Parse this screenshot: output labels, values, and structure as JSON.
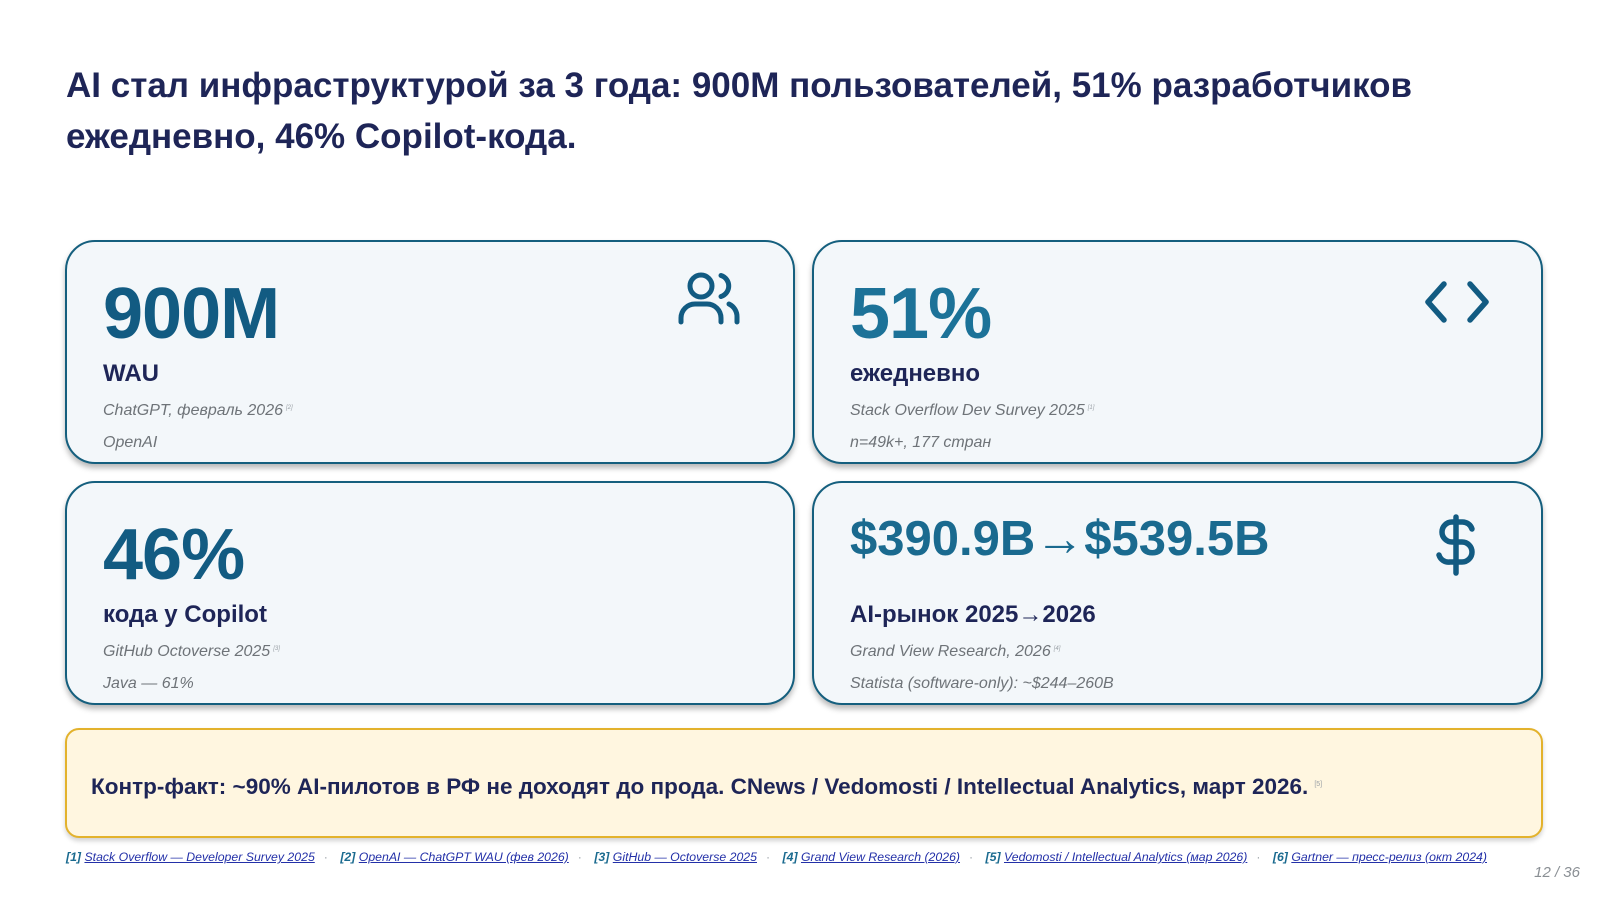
{
  "title": "AI стал инфраструктурой за 3 года: 900M пользователей, 51% разработчиков ежедневно, 46% Copilot-кода.",
  "cards": [
    {
      "value": "900M",
      "label": "WAU",
      "source": "ChatGPT, февраль 2026",
      "ref": "[2]",
      "note": "OpenAI",
      "icon": "users-icon"
    },
    {
      "value": "51%",
      "label": "ежедневно",
      "source": "Stack Overflow Dev Survey 2025",
      "ref": "[1]",
      "note": "n=49k+, 177 стран",
      "icon": "code-icon"
    },
    {
      "value": "46%",
      "label": "кода у Copilot",
      "source": "GitHub Octoverse 2025",
      "ref": "[3]",
      "note": "Java — 61%"
    },
    {
      "value": "$390.9B→$539.5B",
      "label": "AI-рынок 2025→2026",
      "source": "Grand View Research, 2026",
      "ref": "[4]",
      "note": "Statista (software-only): ~$244–260B",
      "icon": "dollar-icon"
    }
  ],
  "counter_fact": {
    "text": "Контр-факт: ~90% AI-пилотов в РФ не доходят до прода. CNews / Vedomosti / Intellectual Analytics, март 2026.",
    "ref": "[5]"
  },
  "references": [
    {
      "num": "[1]",
      "text": "Stack Overflow — Developer Survey 2025"
    },
    {
      "num": "[2]",
      "text": "OpenAI — ChatGPT WAU (фев 2026)"
    },
    {
      "num": "[3]",
      "text": "GitHub — Octoverse 2025"
    },
    {
      "num": "[4]",
      "text": "Grand View Research (2026)"
    },
    {
      "num": "[5]",
      "text": "Vedomosti / Intellectual Analytics (мар 2026)"
    },
    {
      "num": "[6]",
      "text": "Gartner — пресс-релиз (окт 2024)"
    }
  ],
  "separator": "·",
  "page": "12 / 36",
  "colors": {
    "accent": "#155f7e",
    "title": "#1e2557",
    "card_bg": "#f3f7fa",
    "counter_bg": "#fff6e0",
    "counter_border": "#e3b22c"
  }
}
